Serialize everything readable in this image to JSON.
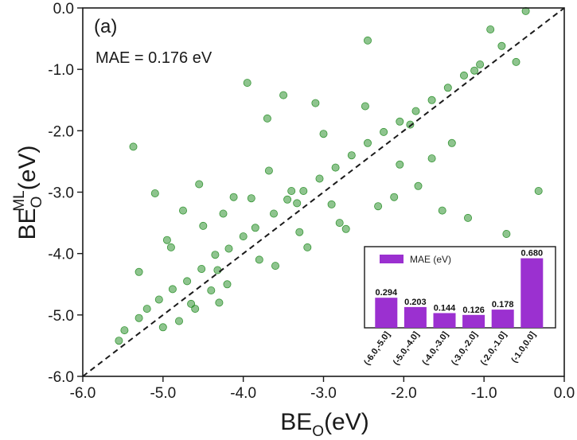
{
  "chart_data": [
    {
      "type": "scatter",
      "panel_label": "(a)",
      "annotation": "MAE = 0.176 eV",
      "xlabel": {
        "base": "BE",
        "sub": "O",
        "sup": "",
        "unit": "(eV)"
      },
      "ylabel": {
        "base": "BE",
        "sub": "O",
        "sup": "ML",
        "unit": "(eV)"
      },
      "xlim": [
        -6.0,
        0.0
      ],
      "ylim": [
        -6.0,
        0.0
      ],
      "xticks": [
        "-6.0",
        "-5.0",
        "-4.0",
        "-3.0",
        "-2.0",
        "-1.0",
        "0.0"
      ],
      "yticks": [
        "-6.0",
        "-5.0",
        "-4.0",
        "-3.0",
        "-2.0",
        "-1.0",
        "0.0"
      ],
      "marker_color": "#1e8a1e",
      "reference_line": "y = x (dashed)",
      "points": [
        [
          -5.37,
          -2.26
        ],
        [
          -5.1,
          -3.02
        ],
        [
          -4.95,
          -3.78
        ],
        [
          -4.75,
          -3.3
        ],
        [
          -4.65,
          -4.82
        ],
        [
          -4.55,
          -2.87
        ],
        [
          -4.32,
          -4.27
        ],
        [
          -4.12,
          -3.08
        ],
        [
          -3.95,
          -1.22
        ],
        [
          -3.7,
          -1.8
        ],
        [
          -3.68,
          -2.65
        ],
        [
          -3.5,
          -1.42
        ],
        [
          -3.4,
          -2.98
        ],
        [
          -3.33,
          -3.18
        ],
        [
          -3.1,
          -1.55
        ],
        [
          -3.0,
          -2.05
        ],
        [
          -2.72,
          -3.6
        ],
        [
          -2.48,
          -1.6
        ],
        [
          -2.45,
          -0.53
        ],
        [
          -2.32,
          -3.23
        ],
        [
          -2.12,
          -3.08
        ],
        [
          -2.05,
          -2.55
        ],
        [
          -1.92,
          -1.9
        ],
        [
          -1.82,
          -2.9
        ],
        [
          -1.65,
          -2.45
        ],
        [
          -1.52,
          -3.3
        ],
        [
          -1.4,
          -2.2
        ],
        [
          -1.2,
          -3.42
        ],
        [
          -1.12,
          -1.02
        ],
        [
          -0.92,
          -0.35
        ],
        [
          -0.78,
          -0.62
        ],
        [
          -0.72,
          -3.68
        ],
        [
          -0.6,
          -0.88
        ],
        [
          -0.48,
          -0.05
        ],
        [
          -0.32,
          -2.98
        ],
        [
          -5.55,
          -5.42
        ],
        [
          -5.48,
          -5.25
        ],
        [
          -5.3,
          -5.05
        ],
        [
          -5.2,
          -4.9
        ],
        [
          -5.05,
          -4.75
        ],
        [
          -4.88,
          -4.58
        ],
        [
          -4.7,
          -4.45
        ],
        [
          -4.52,
          -4.25
        ],
        [
          -4.35,
          -4.02
        ],
        [
          -4.18,
          -3.92
        ],
        [
          -4.0,
          -3.72
        ],
        [
          -3.85,
          -3.58
        ],
        [
          -3.62,
          -3.35
        ],
        [
          -3.45,
          -3.12
        ],
        [
          -3.25,
          -2.98
        ],
        [
          -3.05,
          -2.78
        ],
        [
          -2.85,
          -2.6
        ],
        [
          -2.65,
          -2.4
        ],
        [
          -2.45,
          -2.2
        ],
        [
          -2.25,
          -2.02
        ],
        [
          -2.05,
          -1.85
        ],
        [
          -1.85,
          -1.68
        ],
        [
          -1.65,
          -1.5
        ],
        [
          -1.45,
          -1.3
        ],
        [
          -1.25,
          -1.1
        ],
        [
          -1.05,
          -0.92
        ],
        [
          -4.6,
          -4.9
        ],
        [
          -4.4,
          -4.6
        ],
        [
          -4.2,
          -4.5
        ],
        [
          -3.8,
          -4.1
        ],
        [
          -3.3,
          -3.65
        ],
        [
          -2.9,
          -3.2
        ],
        [
          -5.3,
          -4.3
        ],
        [
          -4.9,
          -3.9
        ],
        [
          -4.5,
          -3.55
        ],
        [
          -4.25,
          -3.35
        ],
        [
          -3.9,
          -3.1
        ],
        [
          -5.0,
          -5.2
        ],
        [
          -4.8,
          -5.1
        ],
        [
          -4.3,
          -4.8
        ],
        [
          -3.6,
          -4.2
        ],
        [
          -3.2,
          -3.9
        ],
        [
          -2.8,
          -3.5
        ]
      ]
    },
    {
      "type": "bar",
      "legend": "MAE (eV)",
      "bar_color": "#9b30d0",
      "categories": [
        "(-6.0,-5.0]",
        "(-5.0,-4.0]",
        "(-4.0,-3.0]",
        "(-3.0,-2.0]",
        "(-2.0,-1.0]",
        "(-1.0,0.0]"
      ],
      "values": [
        0.294,
        0.203,
        0.144,
        0.126,
        0.178,
        0.68
      ],
      "value_labels": [
        "0.294",
        "0.203",
        "0.144",
        "0.126",
        "0.178",
        "0.680"
      ],
      "ylim": [
        0,
        0.7
      ]
    }
  ]
}
